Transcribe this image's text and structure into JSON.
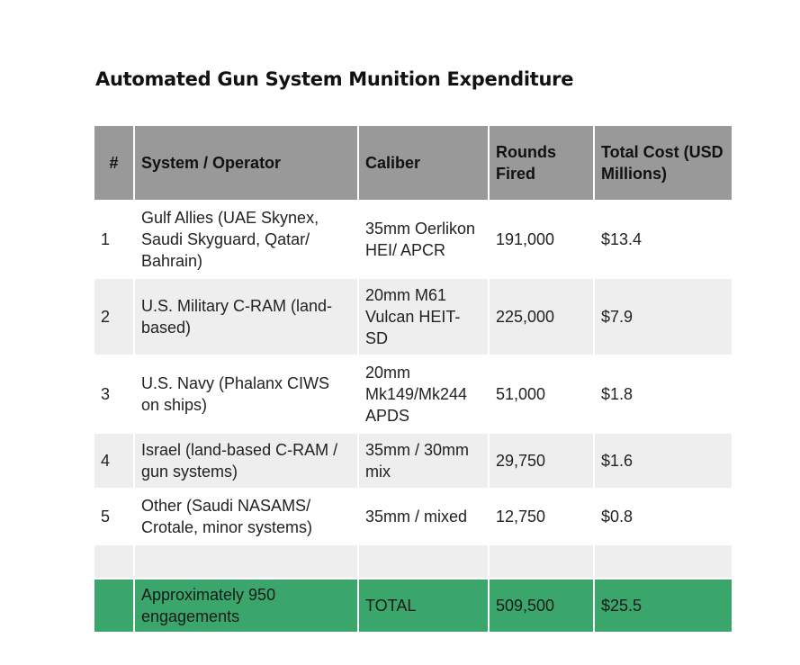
{
  "title": "Automated Gun System Munition Expenditure",
  "colors": {
    "header_bg": "#999999",
    "stripe_bg": "#eeeeee",
    "total_bg": "#3aa66c"
  },
  "columns": [
    "#",
    "System / Operator",
    "Caliber",
    "Rounds Fired",
    "Total Cost (USD Millions)"
  ],
  "rows": [
    {
      "num": "1",
      "system": "Gulf Allies (UAE Skynex, Saudi Skyguard, Qatar/ Bahrain)",
      "caliber": "35mm Oerlikon HEI/ APCR",
      "rounds": "191,000",
      "cost": "$13.4"
    },
    {
      "num": "2",
      "system": "U.S. Military C-RAM (land-based)",
      "caliber": "20mm M61 Vulcan HEIT-SD",
      "rounds": "225,000",
      "cost": "$7.9"
    },
    {
      "num": "3",
      "system": "U.S. Navy (Phalanx CIWS on ships)",
      "caliber": "20mm Mk149/Mk244 APDS",
      "rounds": "51,000",
      "cost": "$1.8"
    },
    {
      "num": "4",
      "system": "Israel (land-based C-RAM / gun systems)",
      "caliber": "35mm / 30mm mix",
      "rounds": "29,750",
      "cost": "$1.6"
    },
    {
      "num": "5",
      "system": "Other (Saudi NASAMS/ Crotale, minor systems)",
      "caliber": "35mm / mixed",
      "rounds": "12,750",
      "cost": "$0.8"
    }
  ],
  "total": {
    "num": "",
    "system": "Approximately 950 engagements",
    "caliber": "TOTAL",
    "rounds": "509,500",
    "cost": "$25.5"
  }
}
